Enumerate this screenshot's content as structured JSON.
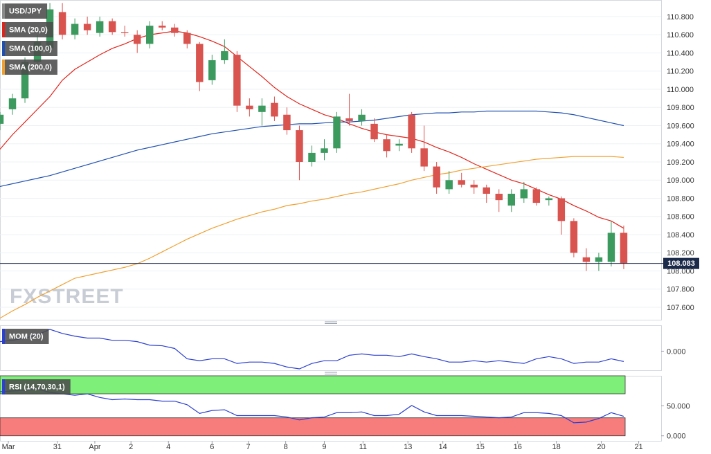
{
  "chart_data": [
    {
      "type": "candlestick",
      "name": "USD/JPY",
      "watermark": "FXSTREET",
      "up_color": "#3c9a5f",
      "down_color": "#d9534f",
      "x": [
        0,
        1,
        2,
        3,
        4,
        5,
        6,
        7,
        8,
        9,
        10,
        11,
        12,
        13,
        14,
        15,
        16,
        17,
        18,
        19,
        20,
        21,
        22,
        23,
        24,
        25,
        26,
        27,
        28,
        29,
        30,
        31,
        32,
        33,
        34,
        35,
        36,
        37,
        38,
        39,
        40,
        41,
        42,
        43,
        44,
        45,
        46,
        47,
        48,
        49,
        50
      ],
      "ohlc": [
        [
          109.62,
          109.75,
          109.55,
          109.72
        ],
        [
          109.78,
          109.95,
          109.72,
          109.9
        ],
        [
          109.9,
          110.35,
          109.85,
          110.3
        ],
        [
          110.3,
          110.6,
          110.25,
          110.52
        ],
        [
          110.45,
          110.95,
          110.4,
          110.88
        ],
        [
          110.85,
          110.95,
          110.55,
          110.6
        ],
        [
          110.6,
          110.78,
          110.55,
          110.72
        ],
        [
          110.72,
          110.8,
          110.6,
          110.65
        ],
        [
          110.62,
          110.8,
          110.58,
          110.75
        ],
        [
          110.75,
          110.78,
          110.6,
          110.63
        ],
        [
          110.63,
          110.7,
          110.58,
          110.62
        ],
        [
          110.6,
          110.65,
          110.4,
          110.5
        ],
        [
          110.5,
          110.75,
          110.45,
          110.7
        ],
        [
          110.7,
          110.75,
          110.65,
          110.68
        ],
        [
          110.68,
          110.72,
          110.58,
          110.62
        ],
        [
          110.62,
          110.65,
          110.45,
          110.5
        ],
        [
          110.5,
          110.52,
          109.98,
          110.08
        ],
        [
          110.1,
          110.38,
          110.05,
          110.32
        ],
        [
          110.32,
          110.55,
          110.28,
          110.42
        ],
        [
          110.38,
          110.42,
          109.75,
          109.82
        ],
        [
          109.82,
          109.9,
          109.7,
          109.78
        ],
        [
          109.75,
          109.9,
          109.6,
          109.82
        ],
        [
          109.85,
          109.92,
          109.65,
          109.7
        ],
        [
          109.72,
          109.8,
          109.5,
          109.55
        ],
        [
          109.55,
          109.6,
          109.0,
          109.2
        ],
        [
          109.2,
          109.38,
          109.15,
          109.3
        ],
        [
          109.3,
          109.45,
          109.22,
          109.35
        ],
        [
          109.35,
          109.75,
          109.3,
          109.7
        ],
        [
          109.68,
          109.95,
          109.6,
          109.65
        ],
        [
          109.65,
          109.78,
          109.6,
          109.72
        ],
        [
          109.62,
          109.68,
          109.42,
          109.45
        ],
        [
          109.45,
          109.5,
          109.25,
          109.32
        ],
        [
          109.38,
          109.45,
          109.32,
          109.4
        ],
        [
          109.72,
          109.75,
          109.3,
          109.35
        ],
        [
          109.35,
          109.6,
          109.1,
          109.15
        ],
        [
          109.15,
          109.2,
          108.85,
          108.92
        ],
        [
          108.9,
          109.1,
          108.85,
          109.0
        ],
        [
          109.0,
          109.08,
          108.92,
          108.95
        ],
        [
          108.95,
          109.0,
          108.85,
          108.92
        ],
        [
          108.92,
          108.95,
          108.75,
          108.85
        ],
        [
          108.85,
          108.9,
          108.65,
          108.78
        ],
        [
          108.72,
          108.9,
          108.65,
          108.85
        ],
        [
          108.8,
          108.98,
          108.75,
          108.9
        ],
        [
          108.9,
          108.92,
          108.72,
          108.75
        ],
        [
          108.78,
          108.82,
          108.72,
          108.8
        ],
        [
          108.8,
          108.82,
          108.4,
          108.55
        ],
        [
          108.55,
          108.58,
          108.15,
          108.2
        ],
        [
          108.15,
          108.25,
          108.0,
          108.1
        ],
        [
          108.1,
          108.2,
          108.0,
          108.15
        ],
        [
          108.1,
          108.55,
          108.05,
          108.42
        ],
        [
          108.42,
          108.5,
          108.02,
          108.083
        ]
      ],
      "series": [
        {
          "name": "SMA (20,0)",
          "color": "#e0241b",
          "values": [
            109.34,
            109.5,
            109.64,
            109.78,
            109.92,
            110.1,
            110.22,
            110.3,
            110.38,
            110.45,
            110.5,
            110.56,
            110.6,
            110.62,
            110.64,
            110.62,
            110.58,
            110.53,
            110.47,
            110.36,
            110.25,
            110.14,
            110.02,
            109.92,
            109.84,
            109.78,
            109.72,
            109.68,
            109.62,
            109.57,
            109.53,
            109.5,
            109.48,
            109.46,
            109.42,
            109.36,
            109.31,
            109.25,
            109.18,
            109.12,
            109.06,
            109.0,
            108.96,
            108.9,
            108.84,
            108.79,
            108.72,
            108.66,
            108.59,
            108.55,
            108.47
          ]
        },
        {
          "name": "SMA (100,0)",
          "color": "#1f4fb0",
          "values": [
            108.93,
            108.96,
            108.99,
            109.02,
            109.05,
            109.09,
            109.13,
            109.17,
            109.21,
            109.25,
            109.29,
            109.33,
            109.36,
            109.39,
            109.42,
            109.45,
            109.48,
            109.51,
            109.53,
            109.55,
            109.57,
            109.59,
            109.6,
            109.61,
            109.62,
            109.62,
            109.63,
            109.64,
            109.64,
            109.65,
            109.66,
            109.68,
            109.7,
            109.72,
            109.73,
            109.74,
            109.74,
            109.75,
            109.75,
            109.76,
            109.76,
            109.76,
            109.76,
            109.76,
            109.75,
            109.74,
            109.72,
            109.69,
            109.66,
            109.63,
            109.6
          ]
        },
        {
          "name": "SMA (200,0)",
          "color": "#f0a030",
          "values": [
            107.48,
            107.56,
            107.63,
            107.71,
            107.78,
            107.85,
            107.92,
            107.95,
            107.98,
            108.01,
            108.04,
            108.08,
            108.14,
            108.21,
            108.28,
            108.35,
            108.41,
            108.47,
            108.52,
            108.57,
            108.61,
            108.65,
            108.68,
            108.72,
            108.74,
            108.77,
            108.79,
            108.82,
            108.85,
            108.87,
            108.9,
            108.93,
            108.96,
            109.0,
            109.03,
            109.06,
            109.08,
            109.11,
            109.13,
            109.15,
            109.17,
            109.19,
            109.21,
            109.23,
            109.24,
            109.25,
            109.26,
            109.26,
            109.26,
            109.26,
            109.25
          ]
        }
      ],
      "last_price": {
        "value": 108.083,
        "color": "#1b2a4a"
      },
      "xlim": [
        0,
        53
      ],
      "ylim": [
        107.463,
        110.983
      ],
      "grid": true,
      "yticks": [
        {
          "value": 110.8,
          "label": "110.800"
        },
        {
          "value": 110.6,
          "label": "110.600"
        },
        {
          "value": 110.4,
          "label": "110.400"
        },
        {
          "value": 110.2,
          "label": "110.200"
        },
        {
          "value": 110.0,
          "label": "110.000"
        },
        {
          "value": 109.8,
          "label": "109.800"
        },
        {
          "value": 109.6,
          "label": "109.600"
        },
        {
          "value": 109.4,
          "label": "109.400"
        },
        {
          "value": 109.2,
          "label": "109.200"
        },
        {
          "value": 109.0,
          "label": "109.000"
        },
        {
          "value": 108.8,
          "label": "108.800"
        },
        {
          "value": 108.6,
          "label": "108.600"
        },
        {
          "value": 108.4,
          "label": "108.400"
        },
        {
          "value": 108.2,
          "label": "108.200"
        },
        {
          "value": 108.0,
          "label": "108.000"
        },
        {
          "value": 107.8,
          "label": "107.800"
        },
        {
          "value": 107.6,
          "label": "107.600"
        }
      ]
    },
    {
      "type": "line",
      "grid": false,
      "ylim": [
        -0.7,
        0.95
      ],
      "yticks": [
        {
          "value": 0,
          "label": "0.000"
        }
      ],
      "series": [
        {
          "name": "MOM (20)",
          "color": "#2b3fd0",
          "values": [
            0.35,
            0.4,
            0.48,
            0.6,
            0.8,
            0.65,
            0.55,
            0.48,
            0.48,
            0.4,
            0.4,
            0.35,
            0.22,
            0.2,
            0.1,
            -0.28,
            -0.35,
            -0.28,
            -0.28,
            -0.45,
            -0.4,
            -0.4,
            -0.45,
            -0.58,
            -0.65,
            -0.45,
            -0.35,
            -0.35,
            -0.15,
            -0.1,
            -0.15,
            -0.15,
            -0.2,
            -0.1,
            -0.2,
            -0.28,
            -0.4,
            -0.4,
            -0.35,
            -0.4,
            -0.35,
            -0.4,
            -0.45,
            -0.28,
            -0.2,
            -0.28,
            -0.45,
            -0.4,
            -0.4,
            -0.28,
            -0.38
          ]
        }
      ]
    },
    {
      "type": "line",
      "grid": false,
      "ylim": [
        -8.4,
        100
      ],
      "yticks": [
        {
          "value": 50,
          "label": "50.000"
        },
        {
          "value": 0,
          "label": "0.000"
        }
      ],
      "bands": [
        {
          "from": 70,
          "to": 100,
          "color": "#7ef07a"
        },
        {
          "from": 0,
          "to": 30,
          "color": "#f77c7c"
        }
      ],
      "series": [
        {
          "name": "RSI (14,70,30,1)",
          "color": "#2b3fd0",
          "values": [
            73.5,
            74.7,
            75.9,
            78.3,
            72.3,
            69.9,
            67.5,
            69.9,
            63.9,
            60.2,
            61.4,
            60.2,
            60.2,
            57.8,
            57.8,
            51.8,
            37.3,
            42.2,
            43.4,
            33.7,
            33.7,
            33.7,
            33.7,
            31.3,
            26.5,
            30.1,
            31.3,
            38.6,
            38.6,
            39.8,
            33.7,
            33.7,
            36.1,
            50.6,
            39.8,
            33.7,
            33.7,
            33.7,
            32.5,
            31.3,
            30.1,
            31.3,
            38.6,
            38.6,
            37.3,
            33.7,
            21.7,
            22.9,
            28.9,
            38.6,
            32.5
          ]
        }
      ],
      "xticks": [
        {
          "value": 0.67,
          "label": "Mar"
        },
        {
          "value": 4.6,
          "label": "31"
        },
        {
          "value": 7.6,
          "label": "Apr"
        },
        {
          "value": 10.5,
          "label": "2"
        },
        {
          "value": 13.5,
          "label": "4"
        },
        {
          "value": 17,
          "label": "6"
        },
        {
          "value": 19.9,
          "label": "7"
        },
        {
          "value": 22.9,
          "label": "8"
        },
        {
          "value": 26,
          "label": "9"
        },
        {
          "value": 29.1,
          "label": "11"
        },
        {
          "value": 32.7,
          "label": "13"
        },
        {
          "value": 35.5,
          "label": "14"
        },
        {
          "value": 38.5,
          "label": "15"
        },
        {
          "value": 41.5,
          "label": "16"
        },
        {
          "value": 44.6,
          "label": "18"
        },
        {
          "value": 48.2,
          "label": "20"
        },
        {
          "value": 51.2,
          "label": "21"
        }
      ]
    }
  ]
}
